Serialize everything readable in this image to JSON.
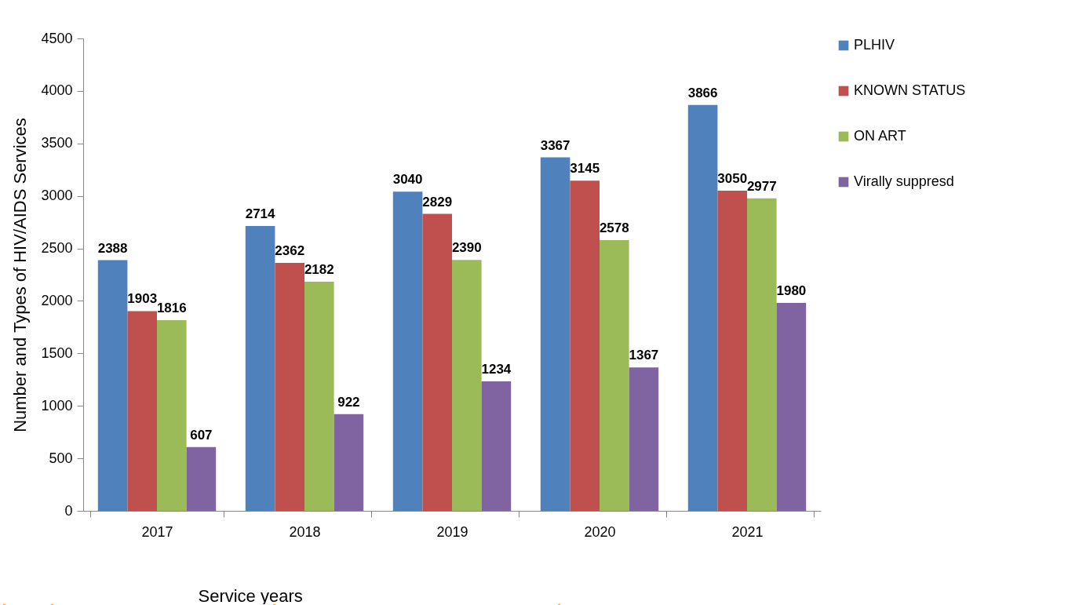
{
  "chart_data": {
    "type": "bar",
    "xlabel": "Service years",
    "ylabel": "Number and Types of HIV/AIDS Services",
    "categories": [
      "2017",
      "2018",
      "2019",
      "2020",
      "2021"
    ],
    "series": [
      {
        "name": "PLHIV",
        "color": "#4f81bd",
        "values": [
          2388,
          2714,
          3040,
          3367,
          3866
        ]
      },
      {
        "name": "KNOWN STATUS",
        "color": "#c0504d",
        "values": [
          1903,
          2362,
          2829,
          3145,
          3050
        ]
      },
      {
        "name": "ON ART",
        "color": "#9bbb59",
        "values": [
          1816,
          2182,
          2390,
          2578,
          2977
        ]
      },
      {
        "name": "Virally suppresd",
        "color": "#8064a2",
        "values": [
          607,
          922,
          1234,
          1367,
          1980
        ]
      }
    ],
    "ylim": [
      0,
      4500
    ],
    "yticks": [
      0,
      500,
      1000,
      1500,
      2000,
      2500,
      3000,
      3500,
      4000,
      4500
    ],
    "grid": false,
    "legend": "right",
    "data_labels": true
  }
}
